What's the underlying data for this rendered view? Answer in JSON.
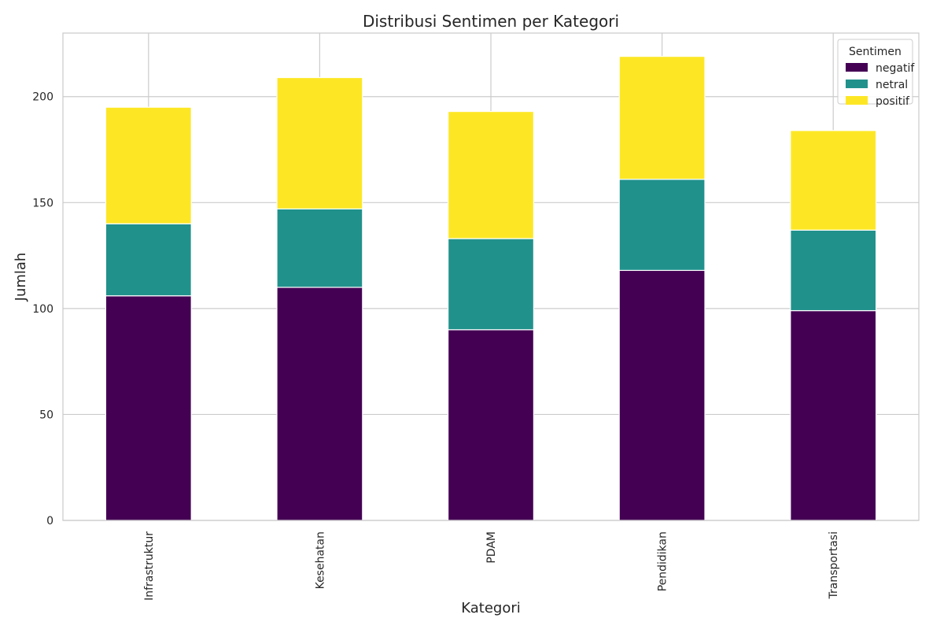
{
  "chart_data": {
    "type": "bar",
    "stacked": true,
    "title": "Distribusi Sentimen per Kategori",
    "xlabel": "Kategori",
    "ylabel": "Jumlah",
    "categories": [
      "Infrastruktur",
      "Kesehatan",
      "PDAM",
      "Pendidikan",
      "Transportasi"
    ],
    "series": [
      {
        "name": "negatif",
        "color": "#440154",
        "values": [
          106,
          110,
          90,
          118,
          99
        ]
      },
      {
        "name": "netral",
        "color": "#21918c",
        "values": [
          34,
          37,
          43,
          43,
          38
        ]
      },
      {
        "name": "positif",
        "color": "#fde725",
        "values": [
          55,
          62,
          60,
          58,
          47
        ]
      }
    ],
    "ylim": [
      0,
      230
    ],
    "yticks": [
      0,
      50,
      100,
      150,
      200
    ],
    "grid": true,
    "legend": {
      "title": "Sentimen",
      "placement": "top-right"
    }
  }
}
